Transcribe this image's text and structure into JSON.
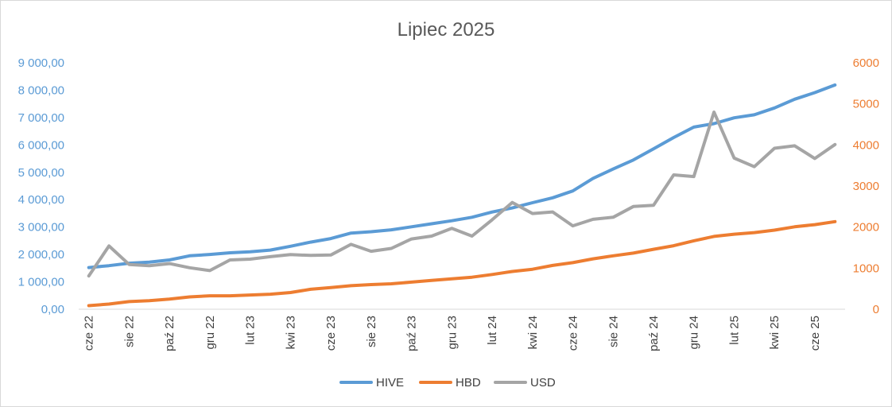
{
  "chart_data": {
    "type": "line",
    "title": "Lipiec 2025",
    "x": [
      "cze 22",
      "lip 22",
      "sie 22",
      "wrz 22",
      "paź 22",
      "lis 22",
      "gru 22",
      "sty 23",
      "lut 23",
      "mar 23",
      "kwi 23",
      "maj 23",
      "cze 23",
      "lip 23",
      "sie 23",
      "wrz 23",
      "paź 23",
      "lis 23",
      "gru 23",
      "sty 24",
      "lut 24",
      "mar 24",
      "kwi 24",
      "maj 24",
      "cze 24",
      "lip 24",
      "sie 24",
      "wrz 24",
      "paź 24",
      "lis 24",
      "gru 24",
      "sty 25",
      "lut 25",
      "mar 25",
      "kwi 25",
      "maj 25",
      "cze 25",
      "lip 25"
    ],
    "x_tick_labels_shown": [
      "cze 22",
      "sie 22",
      "paź 22",
      "gru 22",
      "lut 23",
      "kwi 23",
      "cze 23",
      "sie 23",
      "paź 23",
      "gru 23",
      "lut 24",
      "kwi 24",
      "cze 24",
      "sie 24",
      "paź 24",
      "gru 24",
      "lut 25",
      "kwi 25",
      "cze 25"
    ],
    "y_left": {
      "ylim": [
        0,
        9000
      ],
      "ticks": [
        0,
        1000,
        2000,
        3000,
        4000,
        5000,
        6000,
        7000,
        8000,
        9000
      ],
      "tick_labels": [
        "0,00",
        "1 000,00",
        "2 000,00",
        "3 000,00",
        "4 000,00",
        "5 000,00",
        "6 000,00",
        "7 000,00",
        "8 000,00",
        "9 000,00"
      ],
      "color": "#5b9bd5"
    },
    "y_right": {
      "ylim": [
        0,
        6000
      ],
      "ticks": [
        0,
        1000,
        2000,
        3000,
        4000,
        5000,
        6000
      ],
      "tick_labels": [
        "0",
        "1000",
        "2000",
        "3000",
        "4000",
        "5000",
        "6000"
      ],
      "color": "#ed7d31"
    },
    "series": [
      {
        "name": "HIVE",
        "axis": "left",
        "color": "#5b9bd5",
        "values": [
          1520,
          1590,
          1680,
          1720,
          1800,
          1950,
          2000,
          2060,
          2100,
          2160,
          2300,
          2450,
          2580,
          2780,
          2830,
          2900,
          3010,
          3120,
          3230,
          3360,
          3550,
          3700,
          3890,
          4070,
          4320,
          4780,
          5120,
          5450,
          5860,
          6270,
          6650,
          6780,
          6990,
          7100,
          7350,
          7670,
          7910,
          8190
        ]
      },
      {
        "name": "HBD",
        "axis": "left",
        "color": "#ed7d31",
        "values": [
          130,
          190,
          280,
          310,
          370,
          450,
          490,
          490,
          520,
          550,
          610,
          730,
          790,
          860,
          900,
          930,
          990,
          1050,
          1110,
          1170,
          1270,
          1380,
          1460,
          1600,
          1700,
          1840,
          1950,
          2050,
          2190,
          2320,
          2500,
          2660,
          2740,
          2800,
          2890,
          3010,
          3090,
          3200
        ]
      },
      {
        "name": "USD",
        "axis": "right",
        "color": "#a5a5a5",
        "values": [
          810,
          1540,
          1090,
          1060,
          1110,
          1010,
          940,
          1200,
          1220,
          1280,
          1330,
          1310,
          1320,
          1580,
          1410,
          1480,
          1710,
          1780,
          1970,
          1780,
          2180,
          2600,
          2330,
          2370,
          2030,
          2190,
          2240,
          2500,
          2530,
          3270,
          3230,
          4800,
          3680,
          3470,
          3920,
          3980,
          3670,
          4010
        ]
      }
    ],
    "legend": {
      "placement": "bottom",
      "entries": [
        "HIVE",
        "HBD",
        "USD"
      ]
    },
    "grid": false
  }
}
